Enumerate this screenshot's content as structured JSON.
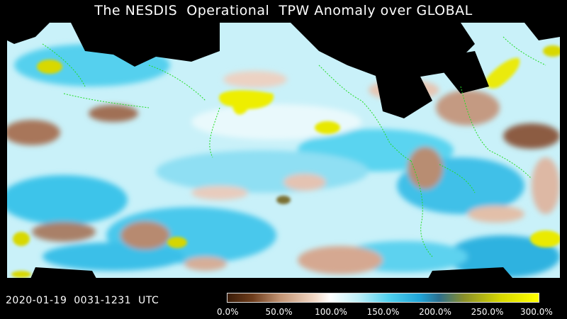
{
  "title": "The NESDIS  Operational  TPW Anomaly over GLOBAL",
  "timestamp": "2020-01-19  0031-1231  UTC",
  "colorbar": {
    "ticks": [
      "0.0%",
      "50.0%",
      "100.0%",
      "150.0%",
      "200.0%",
      "250.0%",
      "300.0%"
    ],
    "stops": [
      {
        "pct": 0,
        "color": "#3a1c08"
      },
      {
        "pct": 8,
        "color": "#6e3d1c"
      },
      {
        "pct": 17,
        "color": "#c29474"
      },
      {
        "pct": 28,
        "color": "#f2d8c6"
      },
      {
        "pct": 33,
        "color": "#ffffff"
      },
      {
        "pct": 42,
        "color": "#bfeff8"
      },
      {
        "pct": 52,
        "color": "#4fd0ee"
      },
      {
        "pct": 62,
        "color": "#1fa3d6"
      },
      {
        "pct": 68,
        "color": "#2c6f8e"
      },
      {
        "pct": 76,
        "color": "#8a8f2a"
      },
      {
        "pct": 88,
        "color": "#d8d800"
      },
      {
        "pct": 100,
        "color": "#ffff00"
      }
    ]
  },
  "colors": {
    "background": "#000000",
    "ocean_light": "#d9f6fb",
    "ocean_cyan": "#46c8ea",
    "ocean_blue": "#1aa0d8",
    "dry_brown": "#a8765a",
    "dry_pink": "#e8c2ae",
    "moist_yellow": "#eaea00",
    "coastline": "#22dd22"
  }
}
